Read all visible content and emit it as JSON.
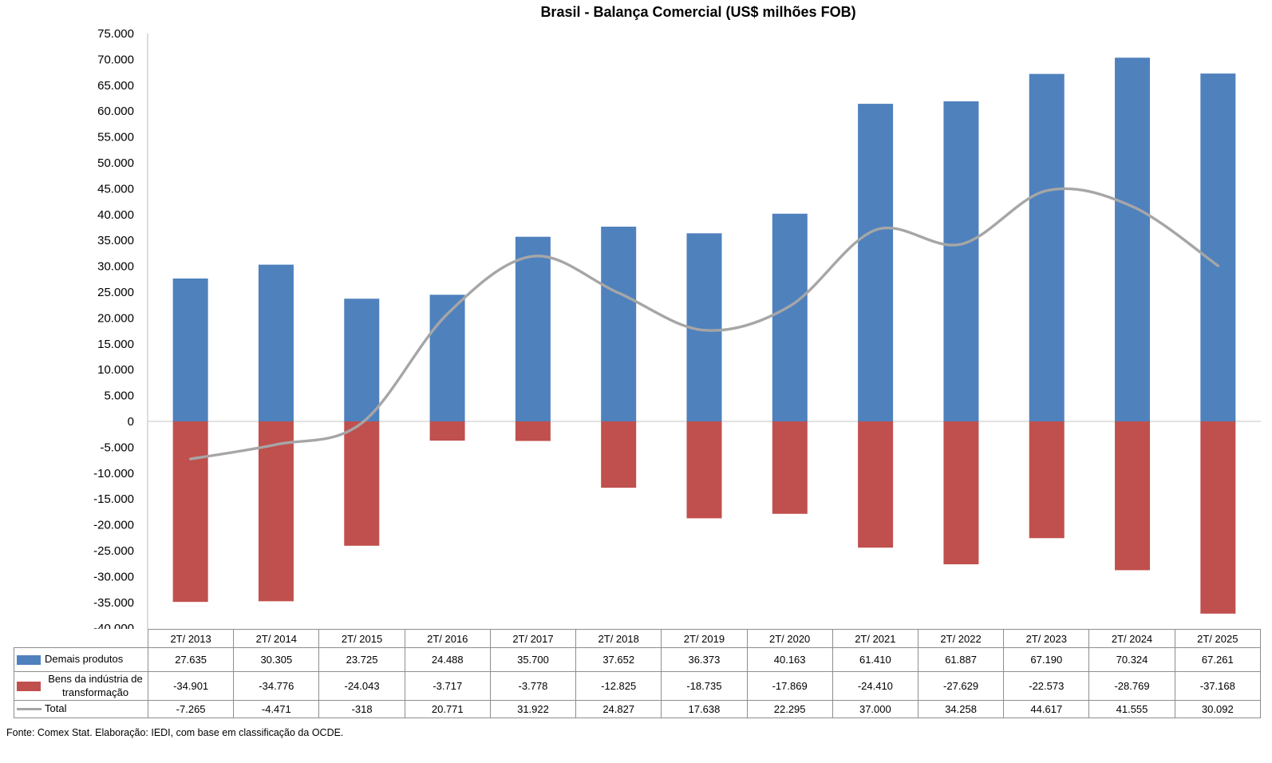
{
  "title": "Brasil - Balança Comercial (US$ milhões FOB)",
  "footer": "Fonte: Comex Stat. Elaboração: IEDI, com base em classificação da OCDE.",
  "colors": {
    "bar_blue": "#4F81BD",
    "bar_red": "#C0504D",
    "total_line": "#A6A6A6",
    "zero_gridline": "#D9D9D9",
    "axis_line": "#C6C6C6",
    "table_border": "#8E8E8E",
    "text": "#000000"
  },
  "chart_data": {
    "type": "bar",
    "subtype": "combo bar + smooth line, stacked around zero",
    "title": "Brasil - Balança Comercial (US$ milhões FOB)",
    "categories": [
      "2T/ 2013",
      "2T/ 2014",
      "2T/ 2015",
      "2T/ 2016",
      "2T/ 2017",
      "2T/ 2018",
      "2T/ 2019",
      "2T/ 2020",
      "2T/ 2021",
      "2T/ 2022",
      "2T/ 2023",
      "2T/ 2024",
      "2T/ 2025"
    ],
    "series": [
      {
        "name": "Demais produtos",
        "type": "bar",
        "color": "#4F81BD",
        "values": [
          27635,
          30305,
          23725,
          24488,
          35700,
          37652,
          36373,
          40163,
          61410,
          61887,
          67190,
          70324,
          67261
        ]
      },
      {
        "name": "Bens da indústria de transformação",
        "type": "bar",
        "color": "#C0504D",
        "values": [
          -34901,
          -34776,
          -24043,
          -3717,
          -3778,
          -12825,
          -18735,
          -17869,
          -24410,
          -27629,
          -22573,
          -28769,
          -37168
        ]
      },
      {
        "name": "Total",
        "type": "line",
        "color": "#A6A6A6",
        "values": [
          -7265,
          -4471,
          -318,
          20771,
          31922,
          24827,
          17638,
          22295,
          37000,
          34258,
          44617,
          41555,
          30092
        ]
      }
    ],
    "xlabel": "",
    "ylabel": "",
    "ylim": [
      -40000,
      75000
    ],
    "ytick_step": 5000,
    "number_format": "thousands separated by dot (pt-BR)",
    "grid": "zero line only",
    "legend_position": "left column of data table below chart"
  }
}
